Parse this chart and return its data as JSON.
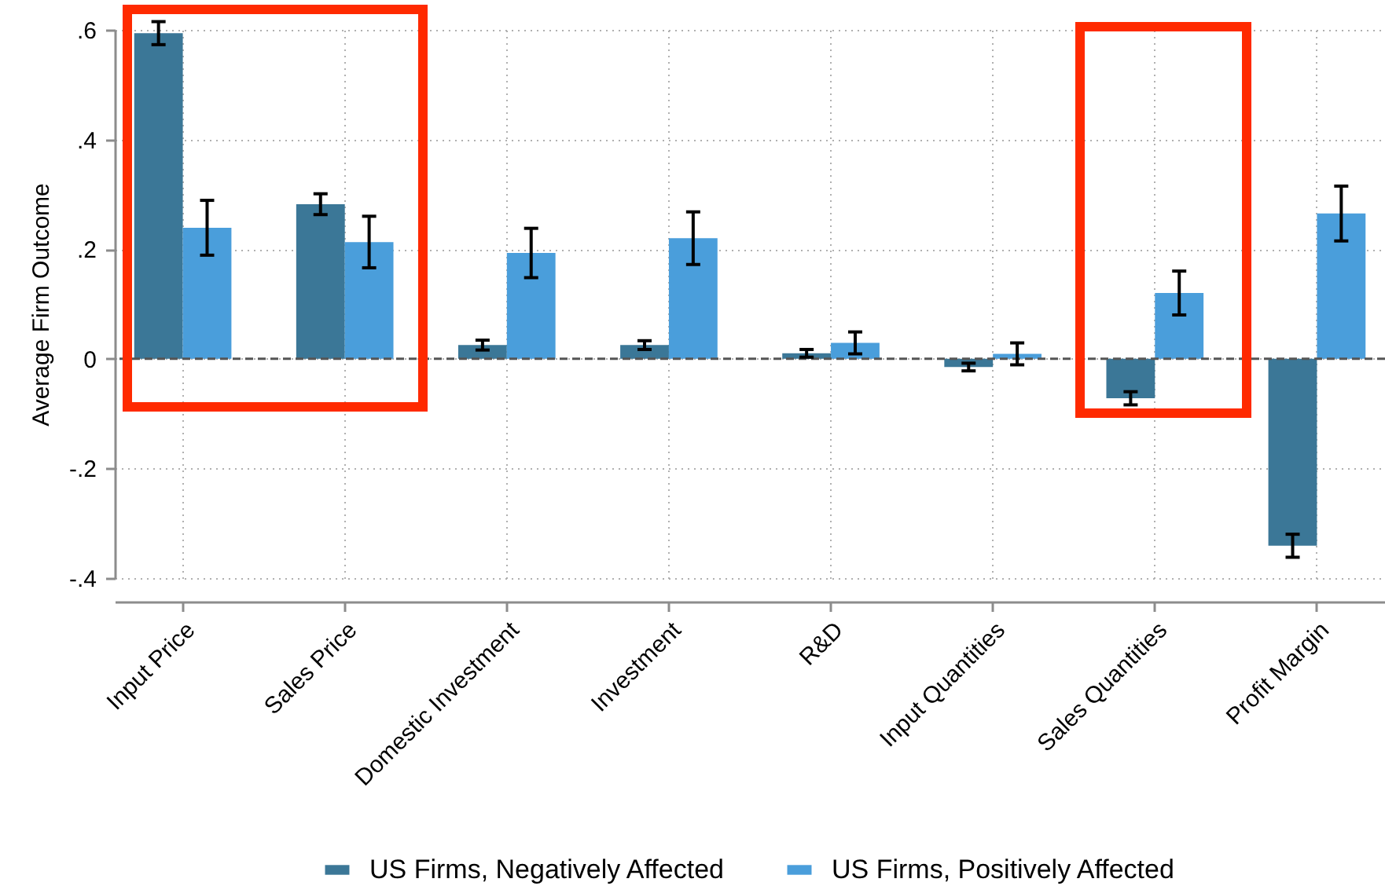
{
  "chart_data": {
    "type": "bar",
    "ylabel": "Average Firm Outcome",
    "categories": [
      "Input Price",
      "Sales Price",
      "Domestic Investment",
      "Investment",
      "R&D",
      "Input Quantities",
      "Sales Quantities",
      "Profit Margin"
    ],
    "series": [
      {
        "name": "US Firms, Negatively Affected",
        "color": "#3b7797",
        "values": [
          0.594,
          0.282,
          0.025,
          0.025,
          0.01,
          -0.015,
          -0.072,
          -0.341
        ],
        "errors": [
          0.021,
          0.019,
          0.009,
          0.008,
          0.007,
          0.007,
          0.012,
          0.021
        ]
      },
      {
        "name": "US Firms, Positively Affected",
        "color": "#4a9edb",
        "values": [
          0.239,
          0.213,
          0.193,
          0.22,
          0.029,
          0.009,
          0.12,
          0.265
        ],
        "errors": [
          0.05,
          0.047,
          0.045,
          0.048,
          0.02,
          0.02,
          0.04,
          0.05
        ]
      }
    ],
    "ylim": [
      -0.4,
      0.6
    ],
    "yticks": [
      {
        "value": -0.4,
        "label": "-.4"
      },
      {
        "value": -0.2,
        "label": "-.2"
      },
      0,
      {
        "value": 0.2,
        "label": ".2"
      },
      {
        "value": 0.4,
        "label": ".4"
      },
      {
        "value": 0.6,
        "label": ".6"
      }
    ],
    "ref_lines": [
      {
        "axis": "y",
        "value": 0,
        "color": "#555555",
        "line_style": "dashed"
      }
    ],
    "grid": true,
    "legend": "bottom"
  }
}
